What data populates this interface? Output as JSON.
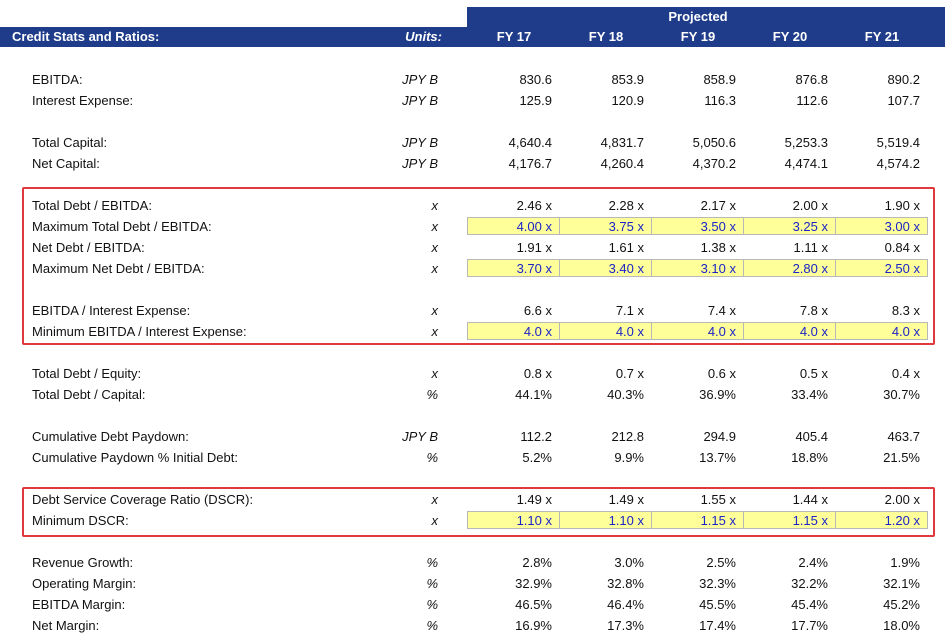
{
  "header": {
    "title": "Credit Stats and Ratios:",
    "units": "Units:",
    "projected": "Projected",
    "years": [
      "FY 17",
      "FY 18",
      "FY 19",
      "FY 20",
      "FY 21"
    ]
  },
  "rows": [
    {
      "label": "EBITDA:",
      "unit": "JPY B",
      "values": [
        "830.6",
        "853.9",
        "858.9",
        "876.8",
        "890.2"
      ]
    },
    {
      "label": "Interest Expense:",
      "unit": "JPY B",
      "values": [
        "125.9",
        "120.9",
        "116.3",
        "112.6",
        "107.7"
      ]
    },
    {
      "label": "Total Capital:",
      "unit": "JPY B",
      "values": [
        "4,640.4",
        "4,831.7",
        "5,050.6",
        "5,253.3",
        "5,519.4"
      ]
    },
    {
      "label": "Net Capital:",
      "unit": "JPY B",
      "values": [
        "4,176.7",
        "4,260.4",
        "4,370.2",
        "4,474.1",
        "4,574.2"
      ]
    },
    {
      "label": "Total Debt / EBITDA:",
      "unit": "x",
      "values": [
        "2.46 x",
        "2.28 x",
        "2.17 x",
        "2.00 x",
        "1.90 x"
      ]
    },
    {
      "label": "Maximum Total Debt / EBITDA:",
      "unit": "x",
      "values": [
        "4.00 x",
        "3.75 x",
        "3.50 x",
        "3.25 x",
        "3.00 x"
      ]
    },
    {
      "label": "Net Debt / EBITDA:",
      "unit": "x",
      "values": [
        "1.91 x",
        "1.61 x",
        "1.38 x",
        "1.11 x",
        "0.84 x"
      ]
    },
    {
      "label": "Maximum Net Debt / EBITDA:",
      "unit": "x",
      "values": [
        "3.70 x",
        "3.40 x",
        "3.10 x",
        "2.80 x",
        "2.50 x"
      ]
    },
    {
      "label": "EBITDA / Interest Expense:",
      "unit": "x",
      "values": [
        "6.6 x",
        "7.1 x",
        "7.4 x",
        "7.8 x",
        "8.3 x"
      ]
    },
    {
      "label": "Minimum EBITDA / Interest Expense:",
      "unit": "x",
      "values": [
        "4.0 x",
        "4.0 x",
        "4.0 x",
        "4.0 x",
        "4.0 x"
      ]
    },
    {
      "label": "Total Debt / Equity:",
      "unit": "x",
      "values": [
        "0.8 x",
        "0.7 x",
        "0.6 x",
        "0.5 x",
        "0.4 x"
      ]
    },
    {
      "label": "Total Debt / Capital:",
      "unit": "%",
      "values": [
        "44.1%",
        "40.3%",
        "36.9%",
        "33.4%",
        "30.7%"
      ]
    },
    {
      "label": "Cumulative Debt Paydown:",
      "unit": "JPY B",
      "values": [
        "112.2",
        "212.8",
        "294.9",
        "405.4",
        "463.7"
      ]
    },
    {
      "label": "Cumulative Paydown % Initial Debt:",
      "unit": "%",
      "values": [
        "5.2%",
        "9.9%",
        "13.7%",
        "18.8%",
        "21.5%"
      ]
    },
    {
      "label": "Debt Service Coverage Ratio (DSCR):",
      "unit": "x",
      "values": [
        "1.49 x",
        "1.49 x",
        "1.55 x",
        "1.44 x",
        "2.00 x"
      ]
    },
    {
      "label": "Minimum DSCR:",
      "unit": "x",
      "values": [
        "1.10 x",
        "1.10 x",
        "1.15 x",
        "1.15 x",
        "1.20 x"
      ]
    },
    {
      "label": "Revenue Growth:",
      "unit": "%",
      "values": [
        "2.8%",
        "3.0%",
        "2.5%",
        "2.4%",
        "1.9%"
      ]
    },
    {
      "label": "Operating Margin:",
      "unit": "%",
      "values": [
        "32.9%",
        "32.8%",
        "32.3%",
        "32.2%",
        "32.1%"
      ]
    },
    {
      "label": "EBITDA Margin:",
      "unit": "%",
      "values": [
        "46.5%",
        "46.4%",
        "45.5%",
        "45.4%",
        "45.2%"
      ]
    },
    {
      "label": "Net Margin:",
      "unit": "%",
      "values": [
        "16.9%",
        "17.3%",
        "17.4%",
        "17.7%",
        "18.0%"
      ]
    }
  ],
  "colors": {
    "header_bg": "#1f3c8a",
    "input_text": "#1a24c8",
    "input_fill": "#ffff99",
    "highlight_border": "#e0393d"
  }
}
